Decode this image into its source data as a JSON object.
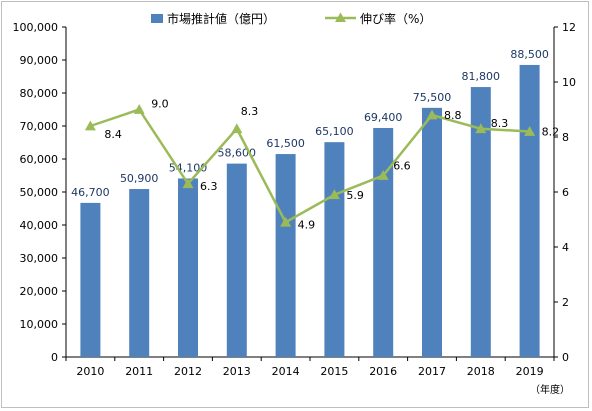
{
  "chart_data": {
    "type": "bar+line",
    "categories": [
      "2010",
      "2011",
      "2012",
      "2013",
      "2014",
      "2015",
      "2016",
      "2017",
      "2018",
      "2019"
    ],
    "series": [
      {
        "name": "市場推計値（億円）",
        "type": "bar",
        "axis": "left",
        "color": "#4f81bd",
        "values": [
          46700,
          50900,
          54100,
          58600,
          61500,
          65100,
          69400,
          75500,
          81800,
          88500
        ],
        "labels": [
          "46,700",
          "50,900",
          "54,100",
          "58,600",
          "61,500",
          "65,100",
          "69,400",
          "75,500",
          "81,800",
          "88,500"
        ]
      },
      {
        "name": "伸び率（%）",
        "type": "line",
        "axis": "right",
        "color": "#9bbb59",
        "values": [
          8.4,
          9.0,
          6.3,
          8.3,
          4.9,
          5.9,
          6.6,
          8.8,
          8.3,
          8.2
        ],
        "labels": [
          "8.4",
          "9.0",
          "6.3",
          "8.3",
          "4.9",
          "5.9",
          "6.6",
          "8.8",
          "8.3",
          "8.2"
        ]
      }
    ],
    "y_left": {
      "ylim": [
        0,
        100000
      ],
      "ticks": [
        "0",
        "10,000",
        "20,000",
        "30,000",
        "40,000",
        "50,000",
        "60,000",
        "70,000",
        "80,000",
        "90,000",
        "100,000"
      ]
    },
    "y_right": {
      "ylim": [
        0,
        12
      ],
      "ticks": [
        "0",
        "2",
        "4",
        "6",
        "8",
        "10",
        "12"
      ]
    },
    "x_unit_label": "（年度）",
    "legend_position": "top",
    "grid": false
  }
}
